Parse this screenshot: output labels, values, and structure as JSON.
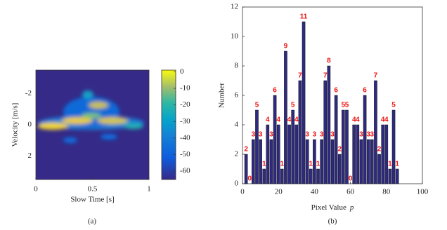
{
  "chart_data": [
    {
      "type": "heatmap",
      "xlabel": "Slow Time [s]",
      "ylabel": "Velocity [m/s]",
      "xlim": [
        0,
        1
      ],
      "xticks": [
        0,
        0.5,
        1
      ],
      "ylim": [
        3.5,
        -3.5
      ],
      "yticks": [
        -2,
        0,
        2
      ],
      "clim": [
        -65,
        1
      ],
      "cticks": [
        0,
        -10,
        -20,
        -30,
        -40,
        -50,
        -60
      ],
      "caption": "(a)"
    },
    {
      "type": "bar",
      "xlabel": "Pixel Value",
      "xlabel_symbol": "p",
      "ylabel": "Number",
      "x": [
        2,
        4,
        6,
        8,
        10,
        12,
        14,
        16,
        18,
        20,
        22,
        24,
        26,
        28,
        30,
        32,
        34,
        36,
        38,
        40,
        42,
        44,
        46,
        48,
        50,
        52,
        54,
        56,
        58,
        60,
        62,
        64,
        66,
        68,
        70,
        72,
        74,
        76,
        78,
        80,
        82,
        84,
        86
      ],
      "values": [
        2,
        0,
        3,
        5,
        3,
        1,
        4,
        3,
        6,
        4,
        1,
        9,
        4,
        5,
        4,
        7,
        11,
        3,
        1,
        3,
        1,
        3,
        7,
        8,
        3,
        6,
        2,
        5,
        5,
        0,
        4,
        4,
        3,
        6,
        3,
        3,
        7,
        2,
        4,
        4,
        1,
        5,
        1
      ],
      "color": "#2e2a80",
      "label_color": "#ee1111",
      "xlim": [
        0,
        100
      ],
      "xticks": [
        0,
        20,
        40,
        60,
        80,
        100
      ],
      "ylim": [
        0,
        12
      ],
      "yticks": [
        0,
        2,
        4,
        6,
        8,
        10,
        12
      ],
      "caption": "(b)"
    }
  ]
}
